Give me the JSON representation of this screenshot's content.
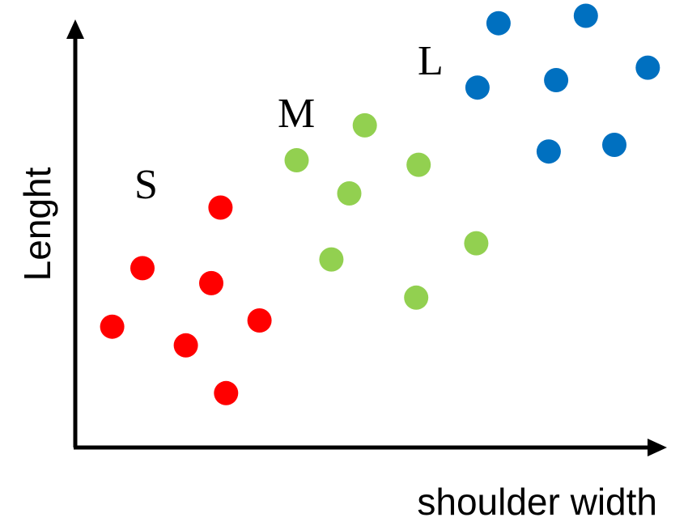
{
  "chart_data": {
    "type": "scatter",
    "title": "",
    "xlabel": "shoulder width",
    "ylabel": "Lenght",
    "xlim": [
      0,
      100
    ],
    "ylim": [
      0,
      100
    ],
    "grid": false,
    "legend": "none",
    "series": [
      {
        "name": "S",
        "color": "#ff0000",
        "points": [
          {
            "x": 7.0,
            "y": 29.1
          },
          {
            "x": 11.9,
            "y": 43.2
          },
          {
            "x": 18.9,
            "y": 24.6
          },
          {
            "x": 23.0,
            "y": 39.6
          },
          {
            "x": 24.5,
            "y": 57.8
          },
          {
            "x": 25.4,
            "y": 13.1
          },
          {
            "x": 30.8,
            "y": 30.6
          }
        ]
      },
      {
        "name": "M",
        "color": "#92d050",
        "points": [
          {
            "x": 36.8,
            "y": 69.2
          },
          {
            "x": 42.4,
            "y": 45.3
          },
          {
            "x": 45.3,
            "y": 61.2
          },
          {
            "x": 47.8,
            "y": 77.6
          },
          {
            "x": 56.1,
            "y": 36.1
          },
          {
            "x": 56.5,
            "y": 68.1
          },
          {
            "x": 65.8,
            "y": 49.2
          }
        ]
      },
      {
        "name": "L",
        "color": "#0070c0",
        "points": [
          {
            "x": 66.0,
            "y": 86.7
          },
          {
            "x": 69.4,
            "y": 102.2
          },
          {
            "x": 77.5,
            "y": 71.3
          },
          {
            "x": 78.7,
            "y": 88.5
          },
          {
            "x": 83.5,
            "y": 104.0
          },
          {
            "x": 88.1,
            "y": 72.9
          },
          {
            "x": 93.5,
            "y": 91.5
          }
        ]
      }
    ]
  }
}
